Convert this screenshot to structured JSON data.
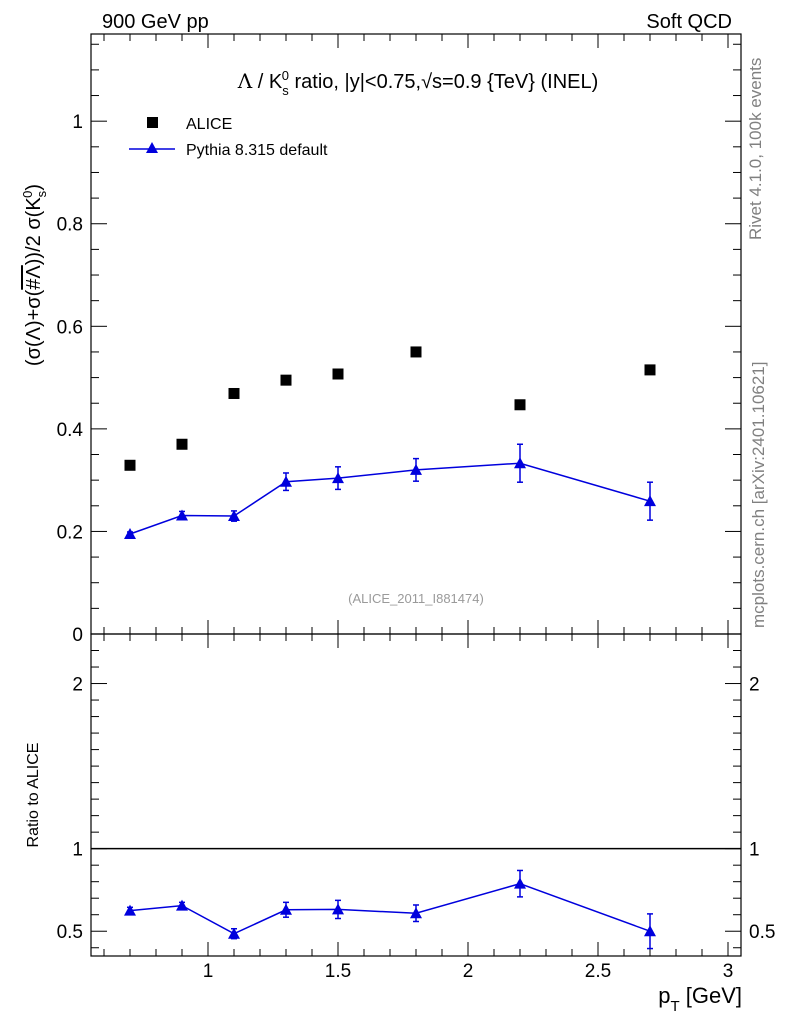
{
  "header": {
    "left": "900 GeV pp",
    "right": "Soft QCD"
  },
  "side_text": {
    "rivet": "Rivet 4.1.0,  100k events",
    "mcplots": "mcplots.cern.ch [arXiv:2401.10621]"
  },
  "watermark": "(ALICE_2011_I881474)",
  "chart_data": [
    {
      "type": "scatter",
      "panel": "main",
      "title": "Λ / K_s^0 ratio, |y|<0.75, √s=0.9 {TeV} (INEL)",
      "ylabel": "(σ(Λ)+σ(#Λ))/2 σ(K_s^0)",
      "xlim": [
        0.55,
        3.05
      ],
      "ylim": [
        0,
        1.17
      ],
      "yticks": [
        0,
        0.2,
        0.4,
        0.6,
        0.8,
        1
      ],
      "ytick_labels": [
        "0",
        "0.2",
        "0.4",
        "0.6",
        "0.8",
        "1"
      ],
      "legend": [
        "ALICE",
        "Pythia 8.315 default"
      ],
      "series": [
        {
          "name": "ALICE",
          "style": "square-marker",
          "color": "#000000",
          "x": [
            0.7,
            0.9,
            1.1,
            1.3,
            1.5,
            1.8,
            2.2,
            2.7
          ],
          "y": [
            0.329,
            0.37,
            0.469,
            0.495,
            0.507,
            0.55,
            0.447,
            0.515
          ]
        },
        {
          "name": "Pythia 8.315 default",
          "style": "triangle-line",
          "color": "#0000dd",
          "x": [
            0.7,
            0.9,
            1.1,
            1.3,
            1.5,
            1.8,
            2.2,
            2.7
          ],
          "y": [
            0.195,
            0.231,
            0.23,
            0.297,
            0.304,
            0.32,
            0.333,
            0.259
          ],
          "yerr": [
            0.004,
            0.008,
            0.01,
            0.017,
            0.022,
            0.022,
            0.037,
            0.037
          ]
        }
      ]
    },
    {
      "type": "line",
      "panel": "ratio",
      "ylabel": "Ratio to ALICE",
      "xlabel": "p_T [GeV]",
      "xlim": [
        0.55,
        3.05
      ],
      "ylim": [
        0.35,
        2.3
      ],
      "xticks": [
        1,
        1.5,
        2,
        2.5,
        3
      ],
      "xtick_labels": [
        "1",
        "1.5",
        "2",
        "2.5",
        "3"
      ],
      "yticks": [
        0.5,
        1,
        2
      ],
      "ytick_labels": [
        "0.5",
        "1",
        "2"
      ],
      "reference_line": 1,
      "series": [
        {
          "name": "Pythia 8.315 default / ALICE",
          "color": "#0000dd",
          "x": [
            0.7,
            0.9,
            1.1,
            1.3,
            1.5,
            1.8,
            2.2,
            2.7
          ],
          "y": [
            0.625,
            0.655,
            0.485,
            0.63,
            0.632,
            0.609,
            0.788,
            0.5
          ],
          "yerr": [
            0.02,
            0.02,
            0.03,
            0.045,
            0.055,
            0.05,
            0.08,
            0.105
          ]
        }
      ]
    }
  ]
}
